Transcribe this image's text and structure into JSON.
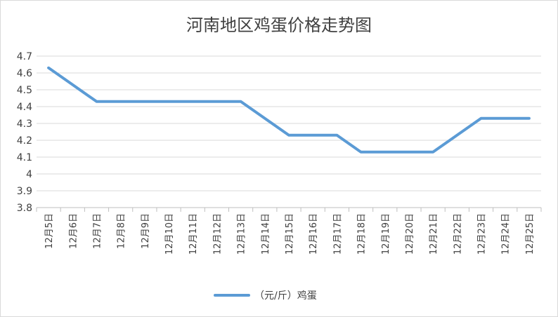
{
  "chart_data": {
    "type": "line",
    "title": "河南地区鸡蛋价格走势图",
    "categories": [
      "12月5日",
      "12月6日",
      "12月7日",
      "12月8日",
      "12月9日",
      "12月10日",
      "12月11日",
      "12月12日",
      "12月13日",
      "12月14日",
      "12月15日",
      "12月16日",
      "12月17日",
      "12月18日",
      "12月19日",
      "12月20日",
      "12月21日",
      "12月22日",
      "12月23日",
      "12月24日",
      "12月25日"
    ],
    "series": [
      {
        "name": "（元/斤）鸡蛋",
        "color": "#5b9bd5",
        "values": [
          4.63,
          4.53,
          4.43,
          4.43,
          4.43,
          4.43,
          4.43,
          4.43,
          4.43,
          4.33,
          4.23,
          4.23,
          4.23,
          4.13,
          4.13,
          4.13,
          4.13,
          4.23,
          4.33,
          4.33,
          4.33
        ]
      }
    ],
    "yticks": [
      "3.8",
      "3.9",
      "4",
      "4.1",
      "4.2",
      "4.3",
      "4.4",
      "4.5",
      "4.6",
      "4.7"
    ],
    "ylim": [
      3.8,
      4.7
    ],
    "grid": true,
    "legend": "bottom",
    "xlabel": "",
    "ylabel": ""
  }
}
